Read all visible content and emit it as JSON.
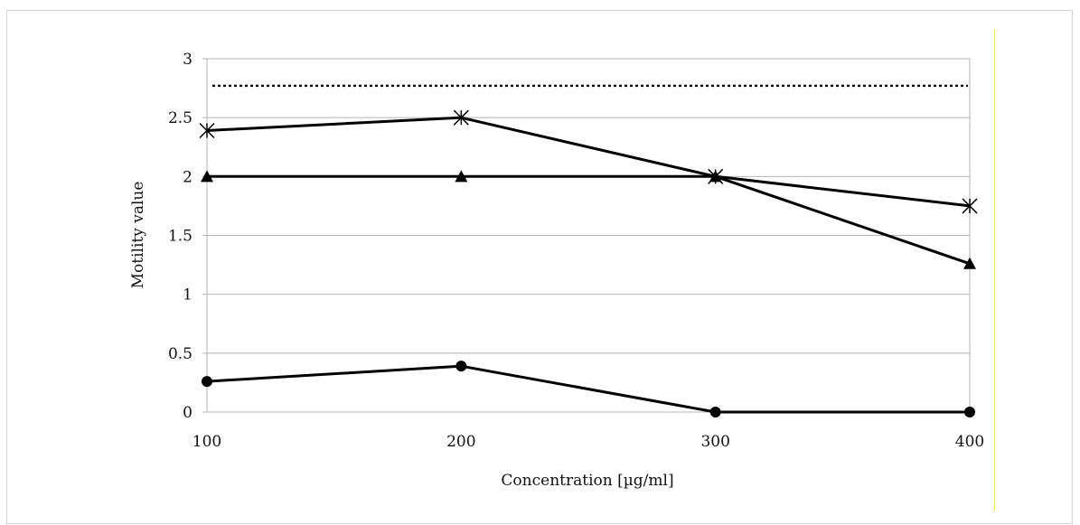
{
  "chart_data": {
    "type": "line",
    "title": "",
    "xlabel": "Concentration [µg/ml]",
    "ylabel": "Motility value",
    "x": [
      100,
      200,
      300,
      400
    ],
    "xlim": [
      100,
      400
    ],
    "ylim": [
      0,
      3
    ],
    "x_ticks": [
      "100",
      "200",
      "300",
      "400"
    ],
    "y_ticks": [
      "0",
      "0.5",
      "1",
      "1.5",
      "2",
      "2.5",
      "3"
    ],
    "grid": "horizontal",
    "legend": "none",
    "series": [
      {
        "marker": "asterisk",
        "values": [
          2.39,
          2.5,
          2.0,
          1.75
        ]
      },
      {
        "marker": "triangle",
        "values": [
          2.0,
          2.0,
          2.0,
          1.26
        ]
      },
      {
        "marker": "circle",
        "values": [
          0.26,
          0.39,
          0.0,
          0.0
        ]
      },
      {
        "marker": "none",
        "style": "dotted",
        "values": [
          2.77,
          2.77,
          2.77,
          2.77
        ]
      }
    ],
    "colors": {
      "lines": "#000000",
      "grid": "#b4b4b4",
      "accent_rule": "#f2ea3c"
    }
  }
}
